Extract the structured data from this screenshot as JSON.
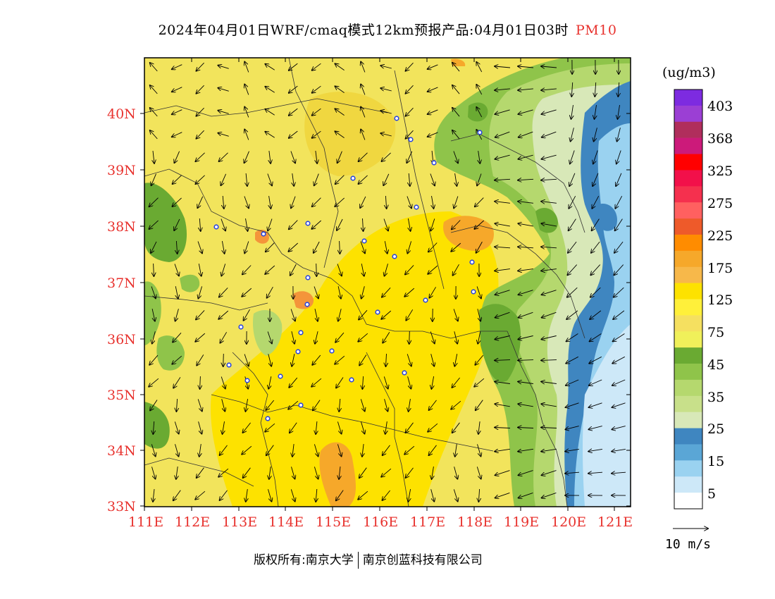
{
  "title": {
    "main": "2024年04月01日WRF/cmaq模式12km预报产品:04月01日03时",
    "parameter": "PM10"
  },
  "latitude_labels": [
    "40N",
    "39N",
    "38N",
    "37N",
    "36N",
    "35N",
    "34N",
    "33N"
  ],
  "longitude_labels": [
    "111E",
    "112E",
    "113E",
    "114E",
    "115E",
    "116E",
    "117E",
    "118E",
    "119E",
    "120E",
    "121E"
  ],
  "colorbar": {
    "unit": "(ug/m3)",
    "labels": [
      "403",
      "368",
      "325",
      "275",
      "225",
      "175",
      "125",
      "75",
      "45",
      "35",
      "25",
      "15",
      "5"
    ],
    "colors": [
      "#7d2be0",
      "#9b3fd4",
      "#b02e5c",
      "#cc1a7a",
      "#ff0000",
      "#f2104a",
      "#f5304e",
      "#ff6060",
      "#ee5a2a",
      "#ff8c00",
      "#f6a82a",
      "#f7b84a",
      "#fde200",
      "#fff03a",
      "#f5e060",
      "#f0f05a",
      "#6aaa32",
      "#8fc44a",
      "#b5d86e",
      "#c8e08a",
      "#d8e8b8",
      "#3f86c0",
      "#5aa6d6",
      "#9ad2f0",
      "#cde8f8",
      "#ffffff"
    ]
  },
  "wind_scale": {
    "label": "10 m/s"
  },
  "copyright": {
    "left": "版权所有:南京大学",
    "right": "南京创蓝科技有限公司"
  },
  "colors": {
    "label_red": "#e8322e",
    "station_marker": "#2a45e0",
    "ocean_blue": "#4b90c8"
  }
}
